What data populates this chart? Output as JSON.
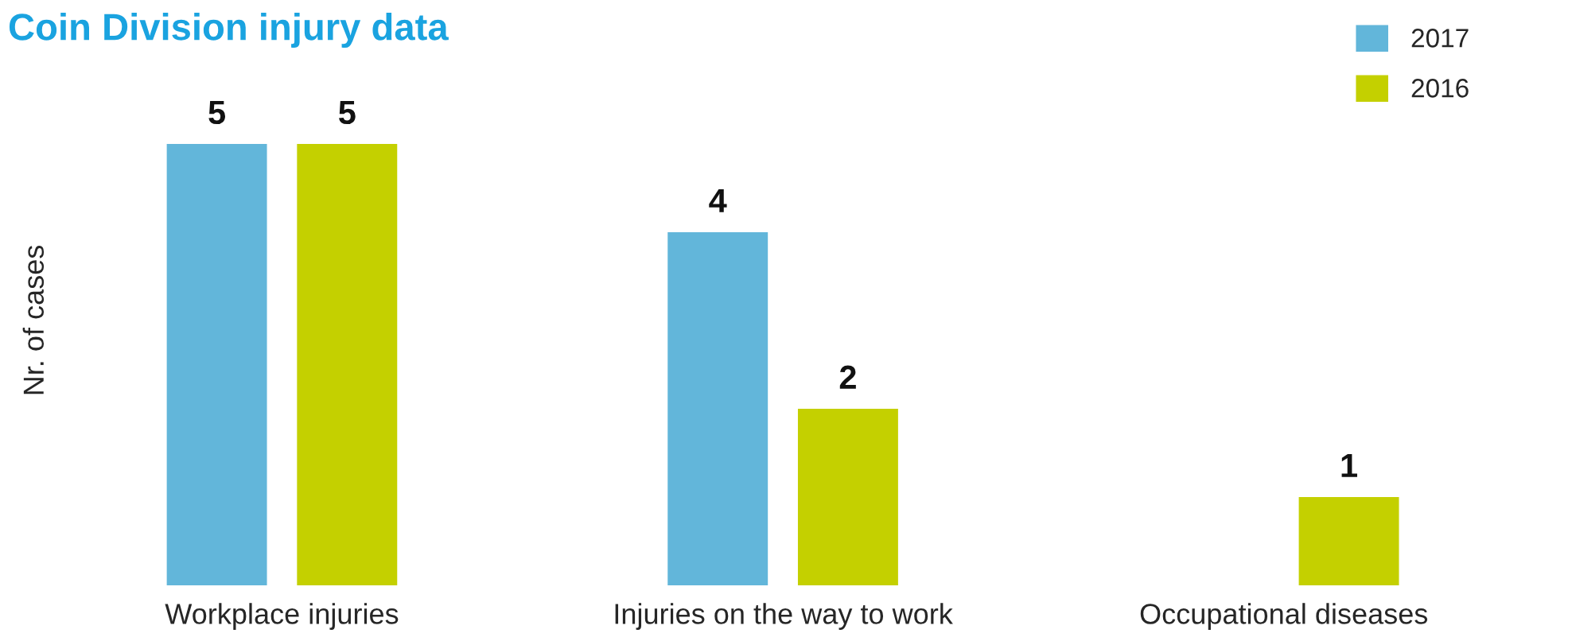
{
  "chart_data": {
    "type": "bar",
    "title": "Coin Division injury data",
    "ylabel": "Nr. of cases",
    "categories": [
      "Workplace injuries",
      "Injuries on the way to work",
      "Occupational diseases"
    ],
    "series": [
      {
        "name": "2017",
        "color": "#62b6da",
        "values": [
          5,
          4,
          0
        ],
        "value_labels": [
          "5",
          "4",
          null
        ]
      },
      {
        "name": "2016",
        "color": "#c4d000",
        "values": [
          5,
          2,
          1
        ],
        "value_labels": [
          "5",
          "2",
          "1"
        ]
      }
    ],
    "legend": "top right",
    "grid": false
  }
}
